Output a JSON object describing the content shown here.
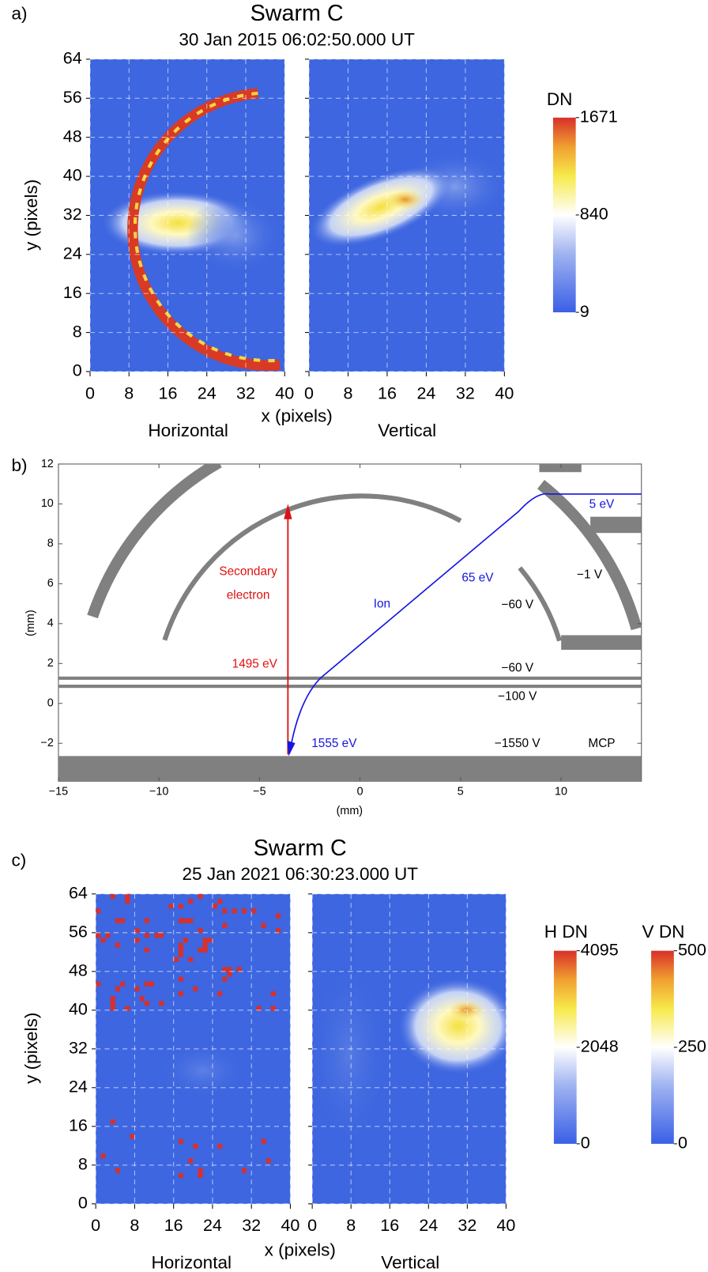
{
  "chart_data": [
    {
      "type": "heatmap",
      "panel_label": "a)",
      "title": "Swarm C",
      "subtitle": "30 Jan 2015 06:02:50.000 UT",
      "xlabel": "x (pixels)",
      "ylabel": "y (pixels)",
      "panels": [
        "Horizontal",
        "Vertical"
      ],
      "xlim": [
        0,
        40
      ],
      "ylim": [
        0,
        64
      ],
      "xticks": [
        0,
        8,
        16,
        24,
        32,
        40
      ],
      "yticks": [
        0,
        8,
        16,
        24,
        32,
        40,
        48,
        56,
        64
      ],
      "colorbars": [
        {
          "label": "DN",
          "clim": [
            9,
            1671
          ],
          "ticks": [
            9,
            840,
            1671
          ]
        }
      ]
    },
    {
      "type": "diagram",
      "panel_label": "b)",
      "xlabel": "(mm)",
      "ylabel": "(mm)",
      "xlim": [
        -15,
        14
      ],
      "ylim": [
        -3.9,
        12
      ],
      "xticks": [
        {
          "value": -15,
          "label": "−15"
        },
        {
          "value": -10,
          "label": "−10"
        },
        {
          "value": -5,
          "label": "−5"
        },
        0,
        5,
        10
      ],
      "yticks": [
        {
          "value": -2,
          "label": "−2"
        },
        0,
        2,
        4,
        6,
        8,
        10,
        12
      ],
      "annotations": [
        "Secondary",
        "electron",
        "1495 eV",
        "Ion",
        "65 eV",
        "5 eV",
        "1555 eV",
        "−1 V",
        "−60 V",
        "−60 V",
        "−100 V",
        "−1550 V",
        "MCP"
      ]
    },
    {
      "type": "heatmap",
      "panel_label": "c)",
      "title": "Swarm C",
      "subtitle": "25 Jan 2021 06:30:23.000 UT",
      "xlabel": "x (pixels)",
      "ylabel": "y (pixels)",
      "panels": [
        "Horizontal",
        "Vertical"
      ],
      "xlim": [
        0,
        40
      ],
      "ylim": [
        0,
        64
      ],
      "xticks": [
        0,
        8,
        16,
        24,
        32,
        40
      ],
      "yticks": [
        0,
        8,
        16,
        24,
        32,
        40,
        48,
        56,
        64
      ],
      "colorbars": [
        {
          "label": "H DN",
          "clim": [
            0,
            4095
          ],
          "ticks": [
            0,
            2048,
            4095
          ]
        },
        {
          "label": "V DN",
          "clim": [
            0,
            500
          ],
          "ticks": [
            0,
            250,
            500
          ]
        }
      ]
    }
  ]
}
